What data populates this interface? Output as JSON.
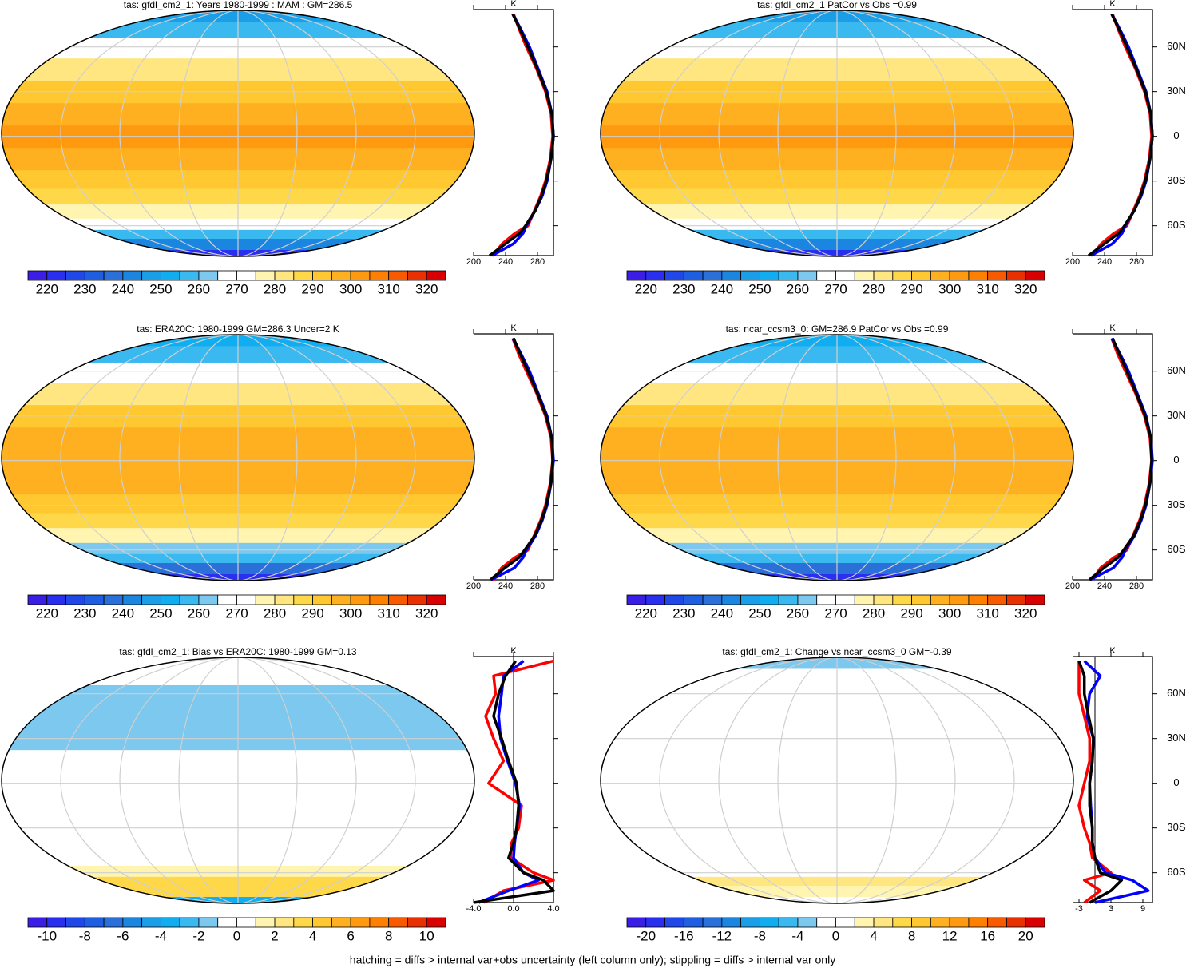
{
  "chart_data": [
    {
      "type": "map",
      "title": "tas: gfdl_cm2_1: Years 1980-1999 : MAM : GM=286.5",
      "colorbar": {
        "lim": [
          215,
          325
        ],
        "ticks": [
          220,
          230,
          240,
          250,
          260,
          270,
          280,
          290,
          300,
          310,
          320
        ],
        "colors": [
          "#3a1ee6",
          "#2a2ef0",
          "#2048e8",
          "#1e5ee0",
          "#2a70d8",
          "#1a86e0",
          "#1a9ee8",
          "#10aef0",
          "#3ab8f0",
          "#7cc8ee",
          "#ffffff",
          "#ffffff",
          "#fff4b0",
          "#ffe680",
          "#ffd84a",
          "#ffc830",
          "#ffb020",
          "#ff9a10",
          "#ff8000",
          "#f85a00",
          "#e83000",
          "#d80000"
        ]
      }
    },
    {
      "type": "line",
      "x_label": "K",
      "xlim": [
        200,
        300
      ],
      "xticks": [
        200,
        240,
        280
      ],
      "ylim": [
        -80,
        85
      ],
      "yticks": [
        -60,
        -30,
        0,
        30,
        60
      ],
      "ytick_labels": false,
      "y": [
        -80,
        -72,
        -65,
        -60,
        -50,
        -40,
        -30,
        -15,
        0,
        15,
        30,
        45,
        60,
        72,
        82
      ],
      "series": [
        {
          "color": "#ff0000",
          "values": [
            224,
            236,
            252,
            268,
            276,
            284,
            290,
            296,
            299,
            297,
            290,
            279,
            266,
            257,
            250
          ]
        },
        {
          "color": "#0000ff",
          "values": [
            223,
            250,
            262,
            266,
            277,
            286,
            292,
            297,
            300,
            298,
            292,
            281,
            270,
            259,
            249
          ]
        },
        {
          "color": "#000000",
          "values": [
            220,
            240,
            258,
            265,
            277,
            285,
            291,
            297,
            300,
            298,
            291,
            280,
            268,
            258,
            249
          ]
        }
      ]
    },
    {
      "type": "map",
      "title": "tas: gfdl_cm2_1 PatCor vs Obs =0.99",
      "colorbar": {
        "lim": [
          215,
          325
        ],
        "ticks": [
          220,
          230,
          240,
          250,
          260,
          270,
          280,
          290,
          300,
          310,
          320
        ],
        "colors": [
          "#3a1ee6",
          "#2a2ef0",
          "#2048e8",
          "#1e5ee0",
          "#2a70d8",
          "#1a86e0",
          "#1a9ee8",
          "#10aef0",
          "#3ab8f0",
          "#7cc8ee",
          "#ffffff",
          "#ffffff",
          "#fff4b0",
          "#ffe680",
          "#ffd84a",
          "#ffc830",
          "#ffb020",
          "#ff9a10",
          "#ff8000",
          "#f85a00",
          "#e83000",
          "#d80000"
        ]
      }
    },
    {
      "type": "line",
      "x_label": "K",
      "xlim": [
        200,
        300
      ],
      "xticks": [
        200,
        240,
        280
      ],
      "ylim": [
        -80,
        85
      ],
      "yticks": [
        {
          "value": -60,
          "label": "60S"
        },
        {
          "value": -30,
          "label": "30S"
        },
        0,
        {
          "value": 30,
          "label": "30N"
        },
        {
          "value": 60,
          "label": "60N"
        }
      ],
      "ytick_labels": true,
      "y": [
        -80,
        -72,
        -65,
        -60,
        -50,
        -40,
        -30,
        -15,
        0,
        15,
        30,
        45,
        60,
        72,
        82
      ],
      "series": [
        {
          "color": "#ff0000",
          "values": [
            224,
            236,
            252,
            268,
            276,
            284,
            290,
            296,
            299,
            297,
            290,
            279,
            266,
            257,
            250
          ]
        },
        {
          "color": "#0000ff",
          "values": [
            223,
            250,
            262,
            266,
            277,
            286,
            292,
            297,
            300,
            298,
            292,
            281,
            270,
            259,
            249
          ]
        },
        {
          "color": "#000000",
          "values": [
            220,
            240,
            258,
            265,
            277,
            285,
            291,
            297,
            300,
            298,
            291,
            280,
            268,
            258,
            249
          ]
        }
      ]
    },
    {
      "type": "map",
      "title": "tas: ERA20C: 1980-1999 GM=286.3 Uncer=2 K",
      "colorbar": {
        "lim": [
          215,
          325
        ],
        "ticks": [
          220,
          230,
          240,
          250,
          260,
          270,
          280,
          290,
          300,
          310,
          320
        ],
        "colors": [
          "#3a1ee6",
          "#2a2ef0",
          "#2048e8",
          "#1e5ee0",
          "#2a70d8",
          "#1a86e0",
          "#1a9ee8",
          "#10aef0",
          "#3ab8f0",
          "#7cc8ee",
          "#ffffff",
          "#ffffff",
          "#fff4b0",
          "#ffe680",
          "#ffd84a",
          "#ffc830",
          "#ffb020",
          "#ff9a10",
          "#ff8000",
          "#f85a00",
          "#e83000",
          "#d80000"
        ]
      }
    },
    {
      "type": "line",
      "x_label": "K",
      "xlim": [
        200,
        300
      ],
      "xticks": [
        200,
        240,
        280
      ],
      "ylim": [
        -80,
        85
      ],
      "yticks": [
        -60,
        -30,
        0,
        30,
        60
      ],
      "ytick_labels": false,
      "y": [
        -80,
        -72,
        -65,
        -60,
        -50,
        -40,
        -30,
        -15,
        0,
        15,
        30,
        45,
        60,
        72,
        82
      ],
      "series": [
        {
          "color": "#ff0000",
          "values": [
            225,
            235,
            252,
            268,
            276,
            284,
            290,
            296,
            299,
            297,
            290,
            279,
            266,
            256,
            249
          ]
        },
        {
          "color": "#0000ff",
          "values": [
            222,
            251,
            262,
            266,
            278,
            286,
            292,
            297,
            300,
            298,
            292,
            281,
            270,
            259,
            249
          ]
        },
        {
          "color": "#000000",
          "values": [
            221,
            239,
            257,
            264,
            277,
            285,
            291,
            297,
            299,
            298,
            291,
            280,
            268,
            258,
            250
          ]
        }
      ]
    },
    {
      "type": "map",
      "title": "tas: ncar_ccsm3_0: GM=286.9 PatCor vs Obs =0.99",
      "colorbar": {
        "lim": [
          215,
          325
        ],
        "ticks": [
          220,
          230,
          240,
          250,
          260,
          270,
          280,
          290,
          300,
          310,
          320
        ],
        "colors": [
          "#3a1ee6",
          "#2a2ef0",
          "#2048e8",
          "#1e5ee0",
          "#2a70d8",
          "#1a86e0",
          "#1a9ee8",
          "#10aef0",
          "#3ab8f0",
          "#7cc8ee",
          "#ffffff",
          "#ffffff",
          "#fff4b0",
          "#ffe680",
          "#ffd84a",
          "#ffc830",
          "#ffb020",
          "#ff9a10",
          "#ff8000",
          "#f85a00",
          "#e83000",
          "#d80000"
        ]
      }
    },
    {
      "type": "line",
      "x_label": "K",
      "xlim": [
        200,
        300
      ],
      "xticks": [
        200,
        240,
        280
      ],
      "ylim": [
        -80,
        85
      ],
      "yticks": [
        {
          "value": -60,
          "label": "60S"
        },
        {
          "value": -30,
          "label": "30S"
        },
        0,
        {
          "value": 30,
          "label": "30N"
        },
        {
          "value": 60,
          "label": "60N"
        }
      ],
      "ytick_labels": true,
      "y": [
        -80,
        -72,
        -65,
        -60,
        -50,
        -40,
        -30,
        -15,
        0,
        15,
        30,
        45,
        60,
        72,
        82
      ],
      "series": [
        {
          "color": "#ff0000",
          "values": [
            225,
            235,
            252,
            268,
            276,
            284,
            290,
            296,
            299,
            297,
            290,
            279,
            266,
            256,
            249
          ]
        },
        {
          "color": "#0000ff",
          "values": [
            222,
            251,
            262,
            266,
            278,
            286,
            292,
            297,
            300,
            298,
            292,
            281,
            270,
            259,
            249
          ]
        },
        {
          "color": "#000000",
          "values": [
            221,
            239,
            257,
            264,
            277,
            285,
            291,
            297,
            299,
            298,
            291,
            280,
            268,
            258,
            250
          ]
        }
      ]
    },
    {
      "type": "map",
      "title": "tas: gfdl_cm2_1: Bias vs ERA20C: 1980-1999 GM=0.13",
      "colorbar": {
        "lim": [
          -11,
          11
        ],
        "ticks": [
          -10,
          -8,
          -6,
          -4,
          -2,
          0,
          2,
          4,
          6,
          8,
          10
        ],
        "colors": [
          "#3a1ee6",
          "#2a2ef0",
          "#2048e8",
          "#1e5ee0",
          "#2a70d8",
          "#1a86e0",
          "#1a9ee8",
          "#10aef0",
          "#3ab8f0",
          "#7cc8ee",
          "#ffffff",
          "#ffffff",
          "#fff4b0",
          "#ffe680",
          "#ffd84a",
          "#ffc830",
          "#ffb020",
          "#ff9a10",
          "#ff8000",
          "#f85a00",
          "#e83000",
          "#d80000"
        ]
      }
    },
    {
      "type": "line",
      "x_label": "K",
      "xlim": [
        -4,
        4
      ],
      "xticks": [
        {
          "value": -4,
          "label": "-4.0"
        },
        {
          "value": 0,
          "label": "0.0"
        },
        {
          "value": 4,
          "label": "4.0"
        }
      ],
      "ylim": [
        -80,
        85
      ],
      "yticks": [
        -60,
        -30,
        0,
        30,
        60
      ],
      "ytick_labels": false,
      "y": [
        -80,
        -72,
        -65,
        -60,
        -50,
        -40,
        -30,
        -15,
        0,
        15,
        30,
        45,
        60,
        72,
        82
      ],
      "series": [
        {
          "color": "#ff0000",
          "values": [
            -3,
            -1,
            4,
            2,
            -0.3,
            -0.2,
            0.5,
            0.8,
            -2.5,
            -1,
            -2,
            -2.8,
            -1.8,
            -2,
            4
          ]
        },
        {
          "color": "#0000ff",
          "values": [
            -3.5,
            -0.5,
            2.5,
            1,
            0,
            0.1,
            0.3,
            0.6,
            0.2,
            -0.6,
            -1.3,
            -1.5,
            -1.2,
            -1,
            1
          ]
        },
        {
          "color": "#000000",
          "values": [
            -4,
            4,
            3,
            1,
            -0.5,
            0,
            0.3,
            0.5,
            0.3,
            -0.5,
            -1.2,
            -2,
            -1.5,
            -0.8,
            0.2
          ]
        }
      ]
    },
    {
      "type": "map",
      "title": "tas: gfdl_cm2_1: Change vs ncar_ccsm3_0 GM=-0.39",
      "colorbar": {
        "lim": [
          -22,
          22
        ],
        "ticks": [
          -20,
          -16,
          -12,
          -8,
          -4,
          0,
          4,
          8,
          12,
          16,
          20
        ],
        "colors": [
          "#3a1ee6",
          "#2a2ef0",
          "#2048e8",
          "#1e5ee0",
          "#2a70d8",
          "#1a86e0",
          "#1a9ee8",
          "#10aef0",
          "#3ab8f0",
          "#7cc8ee",
          "#ffffff",
          "#ffffff",
          "#fff4b0",
          "#ffe680",
          "#ffd84a",
          "#ffc830",
          "#ffb020",
          "#ff9a10",
          "#ff8000",
          "#f85a00",
          "#e83000",
          "#d80000"
        ]
      }
    },
    {
      "type": "line",
      "x_label": "K",
      "xlim": [
        -4.2,
        10.8
      ],
      "xticks": [
        -3,
        3,
        9
      ],
      "ylim": [
        -80,
        85
      ],
      "yticks": [
        {
          "value": -60,
          "label": "60S"
        },
        {
          "value": -30,
          "label": "30S"
        },
        0,
        {
          "value": 30,
          "label": "30N"
        },
        {
          "value": 60,
          "label": "60N"
        }
      ],
      "ytick_labels": true,
      "y": [
        -80,
        -72,
        -65,
        -60,
        -50,
        -40,
        -30,
        -15,
        0,
        15,
        30,
        45,
        60,
        72,
        82
      ],
      "series": [
        {
          "color": "#ff0000",
          "values": [
            -2,
            1,
            -2,
            3,
            -0.5,
            -1,
            -2,
            -3,
            -2,
            -1,
            -1,
            -2,
            -3,
            -3,
            -3
          ]
        },
        {
          "color": "#0000ff",
          "values": [
            0,
            10,
            7,
            2,
            0,
            -0.5,
            -0.5,
            -0.8,
            -1,
            -0.5,
            -0.3,
            -1.5,
            -1,
            1,
            -2
          ]
        },
        {
          "color": "#000000",
          "values": [
            -1,
            3,
            5,
            1,
            0,
            -0.5,
            -0.5,
            -1,
            -1,
            -0.5,
            -0.3,
            -1.2,
            -2,
            -2,
            -3
          ]
        }
      ]
    }
  ],
  "note": "hatching = diffs > internal var+obs uncertainty (left column only); stippling = diffs > internal var only"
}
